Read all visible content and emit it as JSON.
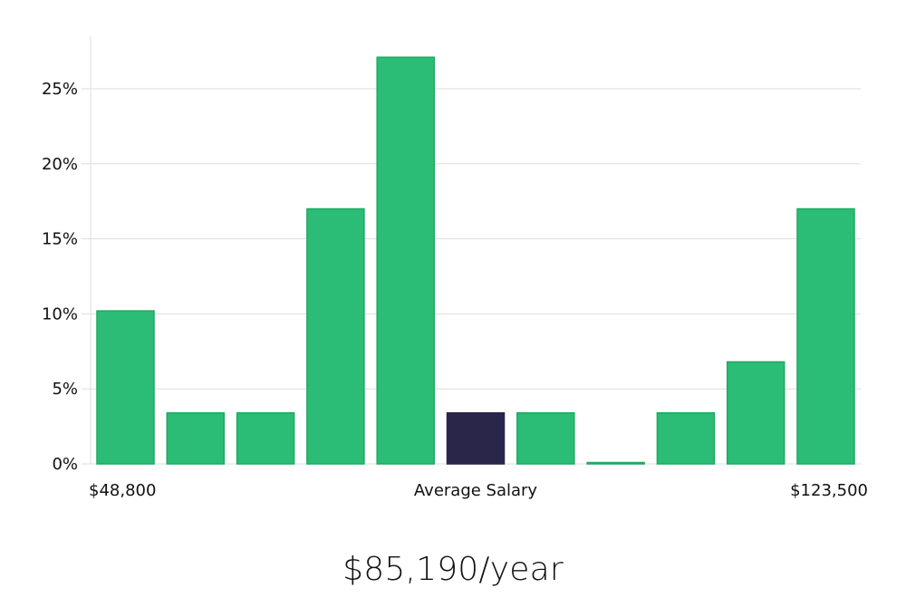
{
  "chart_data": {
    "type": "bar",
    "title": "",
    "xlabel": "Average Salary",
    "ylabel": "",
    "ylim": [
      0,
      28.5
    ],
    "y_ticks": [
      0,
      5,
      10,
      15,
      20,
      25
    ],
    "y_tick_labels": [
      "0%",
      "5%",
      "10%",
      "15%",
      "20%",
      "25%"
    ],
    "x_range_labels": {
      "min": "$48,800",
      "center": "Average Salary",
      "max": "$123,500"
    },
    "values": [
      10.2,
      3.4,
      3.4,
      17.0,
      27.1,
      3.4,
      3.4,
      0.0,
      3.4,
      6.8,
      17.0
    ],
    "highlight_index": 5,
    "colors": {
      "bar": "#2bbd75",
      "bar_border": "#1ea962",
      "highlight": "#2a2649",
      "grid": "#dddddd",
      "axis": "#dddddd"
    }
  },
  "summary": {
    "salary_text": "$85,190/year"
  }
}
